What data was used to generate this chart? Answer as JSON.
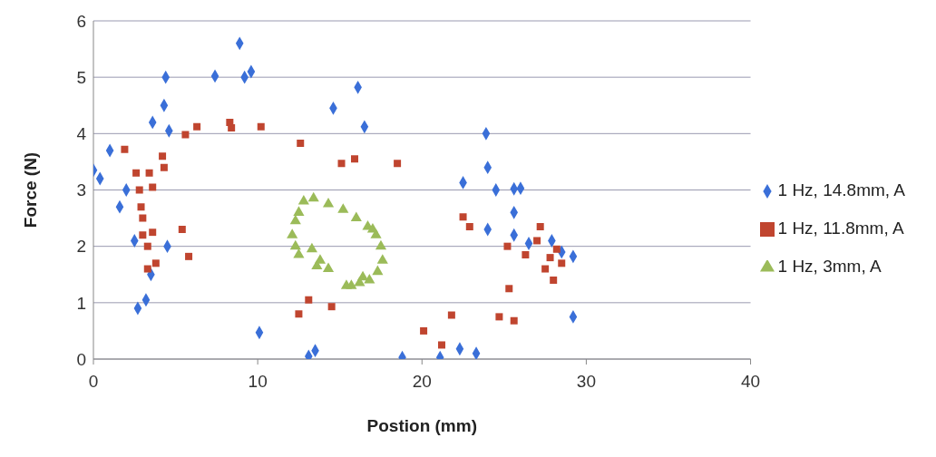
{
  "chart_data": {
    "type": "scatter",
    "xlabel": "Postion (mm)",
    "ylabel": "Force (N)",
    "xlim": [
      0,
      40
    ],
    "ylim": [
      0,
      6
    ],
    "xticks": [
      0,
      10,
      20,
      30,
      40
    ],
    "yticks": [
      0,
      1,
      2,
      3,
      4,
      5,
      6
    ],
    "grid": "y",
    "legend": "right",
    "series": [
      {
        "name": "1 Hz, 14.8mm, A",
        "color": "#3a6fd8",
        "marker": "diamond",
        "x": [
          0,
          0.4,
          1,
          1.6,
          2,
          2.5,
          2.7,
          3.2,
          3.5,
          3.6,
          4.3,
          4.4,
          4.6,
          4.5,
          7.4,
          8.9,
          9.2,
          9.6,
          10.1,
          13.1,
          13.5,
          14.6,
          16.1,
          16.5,
          18.8,
          21.1,
          22.3,
          22.5,
          23.3,
          23.9,
          24,
          24,
          24.5,
          25.6,
          25.6,
          26,
          25.6,
          26.5,
          27.9,
          28.5,
          29.2,
          29.2
        ],
        "values": [
          3.35,
          3.2,
          3.7,
          2.7,
          3,
          2.1,
          0.9,
          1.05,
          1.5,
          4.2,
          4.5,
          5,
          4.05,
          2,
          5.02,
          5.6,
          5,
          5.1,
          0.47,
          0.05,
          0.15,
          4.45,
          4.82,
          4.12,
          0.03,
          0.03,
          0.18,
          3.13,
          0.1,
          4,
          3.4,
          2.3,
          3,
          2.6,
          3.02,
          3.03,
          2.2,
          2.05,
          2.1,
          1.9,
          1.82,
          0.75
        ]
      },
      {
        "name": "1 Hz, 11.8mm, A",
        "color": "#c0452f",
        "marker": "square",
        "x": [
          1.9,
          2.6,
          2.8,
          2.9,
          3,
          3,
          3.3,
          3.4,
          3.6,
          3.6,
          3.3,
          3.8,
          4.2,
          4.3,
          5.4,
          5.8,
          5.6,
          6.3,
          8.3,
          8.4,
          10.2,
          12.6,
          13.1,
          12.5,
          14.5,
          15.1,
          15.9,
          18.5,
          20.1,
          21.8,
          21.2,
          22.5,
          22.9,
          24.7,
          25.2,
          25.3,
          25.6,
          26.3,
          27,
          27.2,
          27.5,
          27.8,
          28,
          28.2,
          28.5
        ],
        "values": [
          3.72,
          3.3,
          3,
          2.7,
          2.5,
          2.2,
          2,
          3.3,
          3.05,
          2.25,
          1.6,
          1.7,
          3.6,
          3.4,
          2.3,
          1.82,
          3.98,
          4.12,
          4.2,
          4.1,
          4.12,
          3.83,
          1.05,
          0.8,
          0.93,
          3.47,
          3.55,
          3.47,
          0.5,
          0.78,
          0.25,
          2.52,
          2.35,
          0.75,
          2,
          1.25,
          0.68,
          1.85,
          2.1,
          2.35,
          1.6,
          1.8,
          1.4,
          1.95,
          1.7
        ]
      },
      {
        "name": "1 Hz, 3mm, A",
        "color": "#9bbb59",
        "marker": "triangle",
        "x": [
          12.5,
          12.8,
          13.4,
          14.3,
          15.2,
          16,
          16.7,
          17.2,
          17.5,
          17.6,
          17.3,
          16.8,
          16.2,
          15.7,
          15.4,
          14.3,
          13.8,
          13.3,
          12.3,
          12.1,
          12.3,
          12.5,
          13.6,
          16.4,
          17
        ],
        "values": [
          2.6,
          2.8,
          2.85,
          2.75,
          2.65,
          2.5,
          2.35,
          2.2,
          2,
          1.75,
          1.55,
          1.4,
          1.35,
          1.3,
          1.3,
          1.6,
          1.75,
          1.95,
          2,
          2.2,
          2.45,
          1.85,
          1.65,
          1.45,
          2.3
        ]
      }
    ]
  }
}
